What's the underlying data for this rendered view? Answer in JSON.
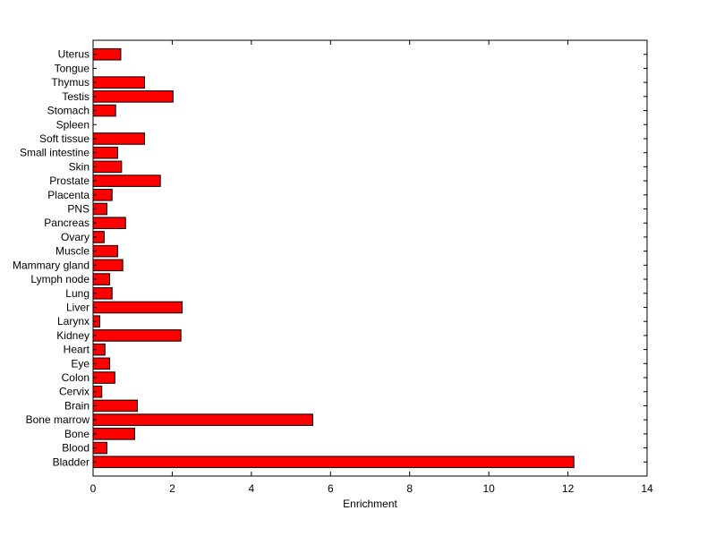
{
  "chart_data": {
    "type": "bar",
    "orientation": "horizontal",
    "title": "",
    "xlabel": "Enrichment",
    "ylabel": "",
    "xlim": [
      0,
      14
    ],
    "xticks": [
      0,
      2,
      4,
      6,
      8,
      10,
      12,
      14
    ],
    "grid": false,
    "bar_color": "#ff0000",
    "edge_color": "#000000",
    "categories": [
      "Bladder",
      "Blood",
      "Bone",
      "Bone marrow",
      "Brain",
      "Cervix",
      "Colon",
      "Eye",
      "Heart",
      "Kidney",
      "Larynx",
      "Liver",
      "Lung",
      "Lymph node",
      "Mammary gland",
      "Muscle",
      "Ovary",
      "Pancreas",
      "PNS",
      "Placenta",
      "Prostate",
      "Skin",
      "Small intestine",
      "Soft tissue",
      "Spleen",
      "Stomach",
      "Testis",
      "Thymus",
      "Tongue",
      "Uterus"
    ],
    "values": [
      12.15,
      0.35,
      1.05,
      5.55,
      1.12,
      0.22,
      0.55,
      0.42,
      0.3,
      2.22,
      0.17,
      2.25,
      0.48,
      0.42,
      0.75,
      0.62,
      0.28,
      0.82,
      0.35,
      0.48,
      1.7,
      0.72,
      0.62,
      1.3,
      0,
      0.57,
      2.02,
      1.3,
      0,
      0.7
    ]
  }
}
